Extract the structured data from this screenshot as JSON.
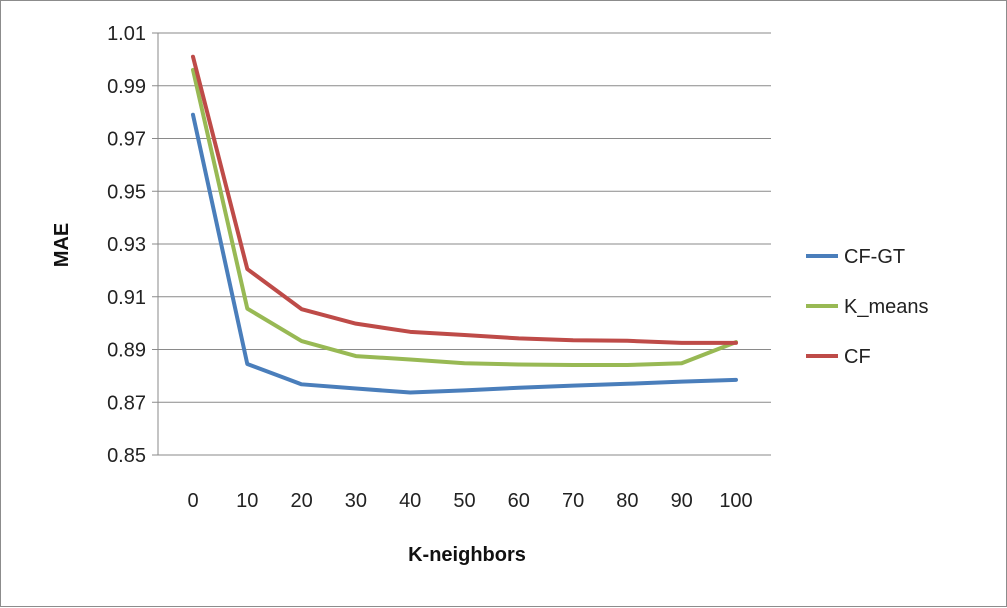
{
  "chart_data": {
    "type": "line",
    "xlabel": "K-neighbors",
    "ylabel": "MAE",
    "x": [
      0,
      10,
      20,
      30,
      40,
      50,
      60,
      70,
      80,
      90,
      100
    ],
    "ylim": [
      0.85,
      1.01
    ],
    "yticks": [
      "0.85",
      "0.87",
      "0.89",
      "0.91",
      "0.93",
      "0.95",
      "0.97",
      "0.99",
      "1.01"
    ],
    "grid": "horizontal",
    "legend_position": "right",
    "series": [
      {
        "name": "CF-GT",
        "color": "#4A7EBB",
        "values": [
          0.979,
          0.8845,
          0.8768,
          0.8752,
          0.8737,
          0.8745,
          0.8755,
          0.8763,
          0.877,
          0.8778,
          0.8785
        ]
      },
      {
        "name": "K_means",
        "color": "#98B954",
        "values": [
          0.996,
          0.9055,
          0.8932,
          0.8875,
          0.8862,
          0.8848,
          0.8843,
          0.8841,
          0.8841,
          0.8848,
          0.8928
        ]
      },
      {
        "name": "CF",
        "color": "#BE4B48",
        "values": [
          1.001,
          0.9205,
          0.9053,
          0.8998,
          0.8967,
          0.8955,
          0.8942,
          0.8935,
          0.8933,
          0.8925,
          0.8925
        ]
      }
    ]
  }
}
